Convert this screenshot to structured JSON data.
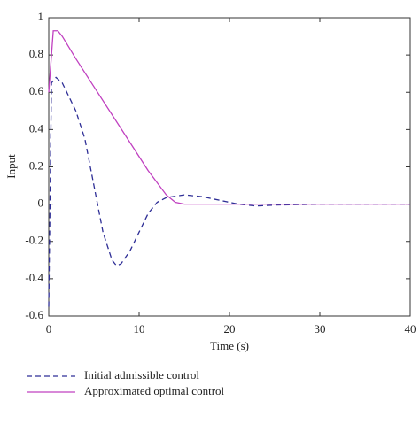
{
  "chart_data": {
    "type": "line",
    "xlabel": "Time (s)",
    "ylabel": "Input",
    "xlim": [
      0,
      40
    ],
    "ylim": [
      -0.6,
      1
    ],
    "xticks": [
      0,
      10,
      20,
      30,
      40
    ],
    "yticks": [
      -0.6,
      -0.4,
      -0.2,
      0,
      0.2,
      0.4,
      0.6,
      0.8,
      1
    ],
    "series": [
      {
        "name": "Initial admissible control",
        "color": "#2e2e96",
        "dash": true,
        "x": [
          0,
          0.3,
          0.8,
          1.5,
          3,
          4,
          5,
          6,
          7,
          7.5,
          8,
          9,
          10,
          11,
          12,
          13,
          15,
          17,
          19,
          21,
          23,
          25,
          30,
          40
        ],
        "values": [
          -0.55,
          0.65,
          0.68,
          0.65,
          0.5,
          0.35,
          0.1,
          -0.15,
          -0.3,
          -0.33,
          -0.32,
          -0.25,
          -0.15,
          -0.05,
          0.01,
          0.035,
          0.05,
          0.04,
          0.02,
          0.0,
          -0.01,
          -0.005,
          0,
          0
        ]
      },
      {
        "name": "Approximated optimal control",
        "color": "#c040c0",
        "dash": false,
        "x": [
          0,
          0.5,
          1,
          1.5,
          3,
          5,
          7,
          9,
          11,
          13,
          14,
          15,
          20,
          40
        ],
        "values": [
          0.6,
          0.93,
          0.93,
          0.9,
          0.78,
          0.63,
          0.48,
          0.33,
          0.18,
          0.05,
          0.01,
          0,
          0,
          0
        ]
      }
    ]
  }
}
